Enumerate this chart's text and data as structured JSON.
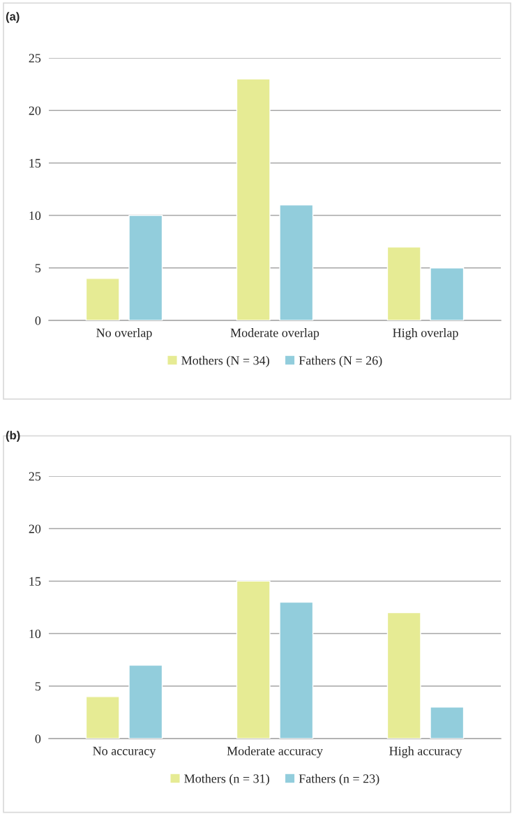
{
  "chart_data": [
    {
      "type": "bar",
      "title": "(a)",
      "categories": [
        "No overlap",
        "Moderate overlap",
        "High overlap"
      ],
      "series": [
        {
          "name": "Mothers (N = 34)",
          "color": "#e6eb94",
          "values": [
            4,
            23,
            7
          ]
        },
        {
          "name": "Fathers (N = 26)",
          "color": "#92cddc",
          "values": [
            10,
            11,
            5
          ]
        }
      ],
      "ylim": [
        0,
        25
      ],
      "yticks": [
        0,
        5,
        10,
        15,
        20,
        25
      ],
      "grid": "y",
      "legend": "bottom"
    },
    {
      "type": "bar",
      "title": "(b)",
      "categories": [
        "No accuracy",
        "Moderate accuracy",
        "High accuracy"
      ],
      "series": [
        {
          "name": "Mothers (n = 31)",
          "color": "#e6eb94",
          "values": [
            4,
            15,
            12
          ]
        },
        {
          "name": "Fathers (n = 23)",
          "color": "#92cddc",
          "values": [
            7,
            13,
            3
          ]
        }
      ],
      "ylim": [
        0,
        25
      ],
      "yticks": [
        0,
        5,
        10,
        15,
        20,
        25
      ],
      "grid": "y",
      "legend": "bottom"
    }
  ]
}
